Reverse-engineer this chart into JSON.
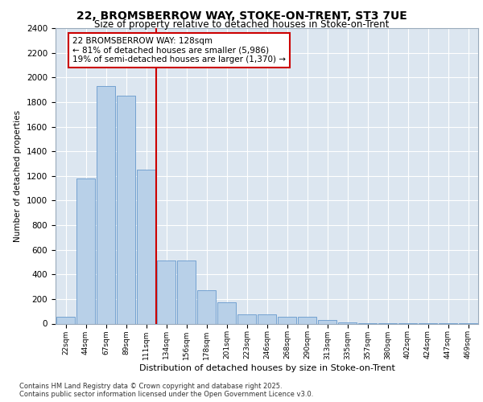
{
  "title_line1": "22, BROMSBERROW WAY, STOKE-ON-TRENT, ST3 7UE",
  "title_line2": "Size of property relative to detached houses in Stoke-on-Trent",
  "xlabel": "Distribution of detached houses by size in Stoke-on-Trent",
  "ylabel": "Number of detached properties",
  "categories": [
    "22sqm",
    "44sqm",
    "67sqm",
    "89sqm",
    "111sqm",
    "134sqm",
    "156sqm",
    "178sqm",
    "201sqm",
    "223sqm",
    "246sqm",
    "268sqm",
    "290sqm",
    "313sqm",
    "335sqm",
    "357sqm",
    "380sqm",
    "402sqm",
    "424sqm",
    "447sqm",
    "469sqm"
  ],
  "values": [
    55,
    1180,
    1930,
    1850,
    1250,
    510,
    510,
    270,
    170,
    75,
    75,
    55,
    55,
    30,
    10,
    5,
    5,
    2,
    1,
    1,
    1
  ],
  "bar_color": "#b8d0e8",
  "bar_edge_color": "#6699cc",
  "bg_color": "#dce6f0",
  "grid_color": "#ffffff",
  "vline_color": "#cc0000",
  "annotation_text": "22 BROMSBERROW WAY: 128sqm\n← 81% of detached houses are smaller (5,986)\n19% of semi-detached houses are larger (1,370) →",
  "annotation_box_color": "#cc0000",
  "ylim": [
    0,
    2400
  ],
  "yticks": [
    0,
    200,
    400,
    600,
    800,
    1000,
    1200,
    1400,
    1600,
    1800,
    2000,
    2200,
    2400
  ],
  "footer_line1": "Contains HM Land Registry data © Crown copyright and database right 2025.",
  "footer_line2": "Contains public sector information licensed under the Open Government Licence v3.0."
}
